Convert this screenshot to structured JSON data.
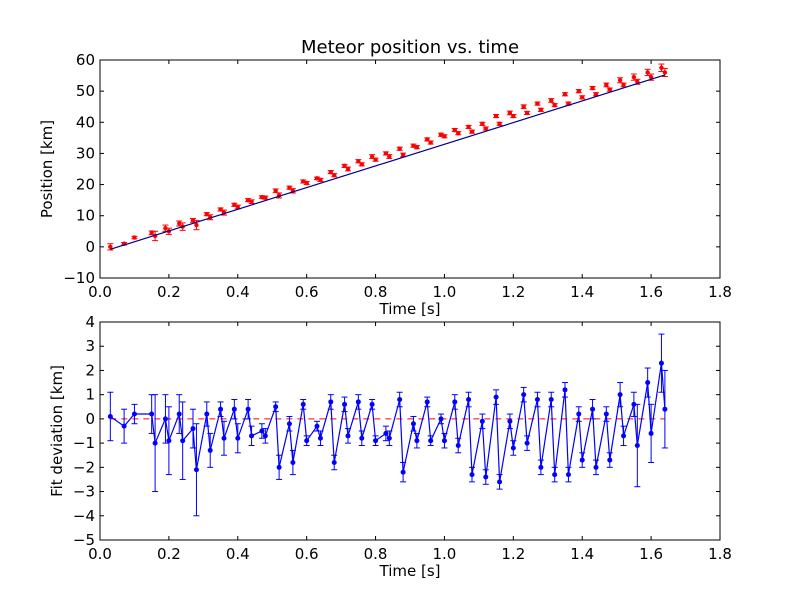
{
  "chart_data": [
    {
      "type": "scatter",
      "title": "Meteor position vs. time",
      "xlabel": "Time [s]",
      "ylabel": "Position [km]",
      "xlim": [
        0,
        1.8
      ],
      "ylim": [
        -10,
        60
      ],
      "xticks": [
        "0.0",
        "0.2",
        "0.4",
        "0.6",
        "0.8",
        "1.0",
        "1.2",
        "1.4",
        "1.6",
        "1.8"
      ],
      "yticks": [
        "−10",
        "0",
        "10",
        "20",
        "30",
        "40",
        "50",
        "60"
      ],
      "grid": false,
      "colors": {
        "points": "#ff0000",
        "fit": "#00008b"
      },
      "fit_line": {
        "x": [
          0.03,
          1.64
        ],
        "y": [
          -0.8,
          55.2
        ]
      },
      "points": {
        "x": [
          0.03,
          0.07,
          0.1,
          0.15,
          0.16,
          0.19,
          0.2,
          0.23,
          0.24,
          0.27,
          0.28,
          0.31,
          0.32,
          0.35,
          0.36,
          0.39,
          0.4,
          0.43,
          0.44,
          0.47,
          0.48,
          0.51,
          0.52,
          0.55,
          0.56,
          0.59,
          0.6,
          0.63,
          0.64,
          0.67,
          0.68,
          0.71,
          0.72,
          0.75,
          0.76,
          0.79,
          0.8,
          0.83,
          0.84,
          0.87,
          0.88,
          0.91,
          0.92,
          0.95,
          0.96,
          0.99,
          1.0,
          1.03,
          1.04,
          1.07,
          1.08,
          1.11,
          1.12,
          1.15,
          1.16,
          1.19,
          1.2,
          1.23,
          1.24,
          1.27,
          1.28,
          1.31,
          1.32,
          1.35,
          1.36,
          1.39,
          1.4,
          1.43,
          1.44,
          1.47,
          1.48,
          1.51,
          1.52,
          1.55,
          1.56,
          1.59,
          1.6,
          1.63,
          1.64
        ],
        "y": [
          0.0,
          1.0,
          3.0,
          4.5,
          3.5,
          6.0,
          5.0,
          7.5,
          6.5,
          8.5,
          7.0,
          10.5,
          9.5,
          12.0,
          11.0,
          13.5,
          12.8,
          15.0,
          14.5,
          16.0,
          15.8,
          18.0,
          16.5,
          19.0,
          18.0,
          21.0,
          20.5,
          22.0,
          21.5,
          24.0,
          23.0,
          26.0,
          25.0,
          27.5,
          26.5,
          29.0,
          28.0,
          30.0,
          29.0,
          31.5,
          29.5,
          32.5,
          32.0,
          34.5,
          33.5,
          36.0,
          35.5,
          37.5,
          36.5,
          38.5,
          37.0,
          39.5,
          38.0,
          42.0,
          39.5,
          43.0,
          42.0,
          45.0,
          43.0,
          46.0,
          44.0,
          47.0,
          45.5,
          49.0,
          46.0,
          50.0,
          48.0,
          51.0,
          49.0,
          52.0,
          50.5,
          53.5,
          52.0,
          54.5,
          53.0,
          56.0,
          54.5,
          57.5,
          56.0
        ],
        "err": [
          1.0,
          0.4,
          0.4,
          0.6,
          1.5,
          1.0,
          1.0,
          0.8,
          1.2,
          0.6,
          1.5,
          0.5,
          0.8,
          0.5,
          0.8,
          0.5,
          0.6,
          0.5,
          0.6,
          0.4,
          0.5,
          0.6,
          0.8,
          0.5,
          0.7,
          0.5,
          0.5,
          0.4,
          0.5,
          0.5,
          0.5,
          0.5,
          0.6,
          0.5,
          0.5,
          0.6,
          0.5,
          0.5,
          0.6,
          0.5,
          0.6,
          0.5,
          0.5,
          0.5,
          0.5,
          0.5,
          0.5,
          0.5,
          0.5,
          0.5,
          0.5,
          0.5,
          0.5,
          0.5,
          0.5,
          0.6,
          0.5,
          0.6,
          0.5,
          0.5,
          0.5,
          0.6,
          0.5,
          0.5,
          0.5,
          0.5,
          0.5,
          0.5,
          0.5,
          0.6,
          0.5,
          0.8,
          0.6,
          1.0,
          0.8,
          1.0,
          1.0,
          1.2,
          1.3
        ]
      }
    },
    {
      "type": "line",
      "xlabel": "Time [s]",
      "ylabel": "Fit deviation [km]",
      "xlim": [
        0,
        1.8
      ],
      "ylim": [
        -5,
        4
      ],
      "xticks": [
        "0.0",
        "0.2",
        "0.4",
        "0.6",
        "0.8",
        "1.0",
        "1.2",
        "1.4",
        "1.6",
        "1.8"
      ],
      "yticks": [
        "−5",
        "−4",
        "−3",
        "−2",
        "−1",
        "0",
        "1",
        "2",
        "3",
        "4"
      ],
      "grid": false,
      "colors": {
        "series": "#0000ff",
        "zero_line": "#ff0000"
      },
      "zero_line": 0,
      "x": [
        0.03,
        0.07,
        0.1,
        0.15,
        0.16,
        0.19,
        0.2,
        0.23,
        0.24,
        0.27,
        0.28,
        0.31,
        0.32,
        0.35,
        0.36,
        0.39,
        0.4,
        0.43,
        0.44,
        0.47,
        0.48,
        0.51,
        0.52,
        0.55,
        0.56,
        0.59,
        0.6,
        0.63,
        0.64,
        0.67,
        0.68,
        0.71,
        0.72,
        0.75,
        0.76,
        0.79,
        0.8,
        0.83,
        0.84,
        0.87,
        0.88,
        0.91,
        0.92,
        0.95,
        0.96,
        0.99,
        1.0,
        1.03,
        1.04,
        1.07,
        1.08,
        1.11,
        1.12,
        1.15,
        1.16,
        1.19,
        1.2,
        1.23,
        1.24,
        1.27,
        1.28,
        1.31,
        1.32,
        1.35,
        1.36,
        1.39,
        1.4,
        1.43,
        1.44,
        1.47,
        1.48,
        1.51,
        1.52,
        1.55,
        1.56,
        1.59,
        1.6,
        1.63,
        1.64
      ],
      "y": [
        0.1,
        -0.3,
        0.2,
        0.2,
        -1.0,
        0.0,
        -0.9,
        0.2,
        -0.9,
        -0.4,
        -2.1,
        0.2,
        -1.3,
        0.4,
        -0.8,
        0.4,
        -0.8,
        0.4,
        -0.7,
        -0.5,
        -0.7,
        0.5,
        -2.0,
        -0.2,
        -1.8,
        0.6,
        -0.9,
        -0.3,
        -0.8,
        0.7,
        -1.8,
        0.6,
        -0.7,
        0.7,
        -0.8,
        0.6,
        -0.9,
        -0.6,
        -0.8,
        0.8,
        -2.2,
        -0.2,
        -0.9,
        0.7,
        -0.9,
        0.0,
        -0.9,
        0.7,
        -1.1,
        0.8,
        -2.3,
        -0.1,
        -2.4,
        0.9,
        -2.6,
        -0.1,
        -1.2,
        1.0,
        -1.0,
        0.8,
        -2.0,
        0.8,
        -2.3,
        1.2,
        -2.3,
        0.2,
        -1.7,
        0.4,
        -2.0,
        0.2,
        -1.7,
        1.0,
        -0.7,
        0.6,
        -1.1,
        1.5,
        -0.6,
        2.3,
        0.4
      ],
      "err": [
        1.0,
        0.7,
        0.4,
        0.8,
        2.0,
        1.0,
        1.4,
        0.8,
        1.6,
        0.8,
        1.9,
        0.5,
        0.7,
        0.3,
        0.7,
        0.4,
        0.6,
        0.4,
        0.4,
        0.3,
        0.3,
        0.2,
        0.5,
        0.3,
        0.5,
        0.2,
        0.2,
        0.2,
        0.3,
        0.3,
        0.3,
        0.3,
        0.3,
        0.3,
        0.3,
        0.2,
        0.2,
        0.3,
        0.3,
        0.3,
        0.4,
        0.3,
        0.3,
        0.2,
        0.2,
        0.2,
        0.3,
        0.3,
        0.3,
        0.3,
        0.3,
        0.3,
        0.3,
        0.3,
        0.3,
        0.3,
        0.3,
        0.3,
        0.3,
        0.3,
        0.3,
        0.3,
        0.3,
        0.3,
        0.3,
        0.3,
        0.3,
        0.4,
        0.3,
        0.3,
        0.3,
        0.5,
        0.4,
        0.5,
        1.7,
        0.6,
        1.2,
        1.2,
        1.6
      ]
    }
  ]
}
